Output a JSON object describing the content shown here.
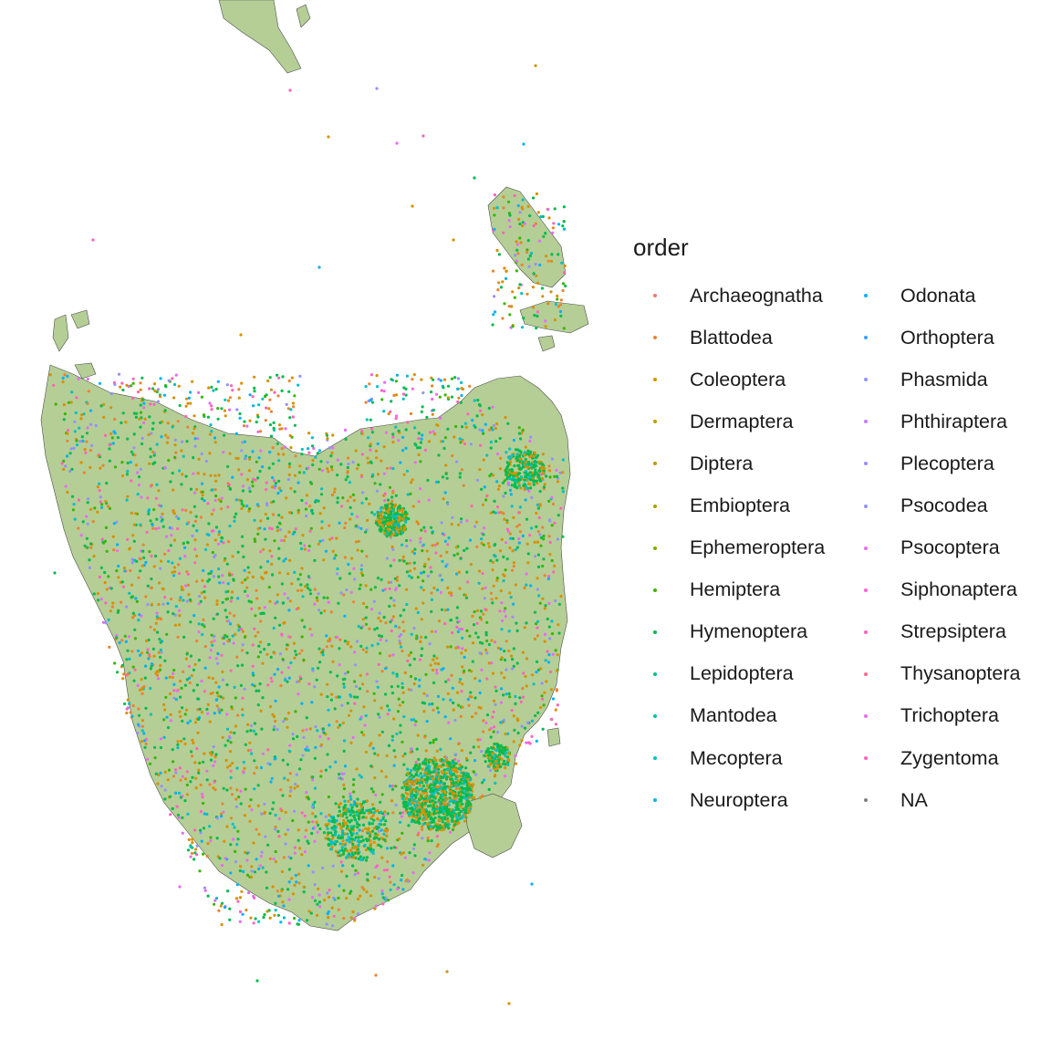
{
  "legend": {
    "title": "order",
    "items": [
      {
        "label": "Archaeognatha",
        "color": "#F8766D"
      },
      {
        "label": "Blattodea",
        "color": "#EA8331"
      },
      {
        "label": "Coleoptera",
        "color": "#D89000"
      },
      {
        "label": "Dermaptera",
        "color": "#C09B00"
      },
      {
        "label": "Diptera",
        "color": "#C09B00"
      },
      {
        "label": "Embioptera",
        "color": "#A3A500"
      },
      {
        "label": "Ephemeroptera",
        "color": "#7CAE00"
      },
      {
        "label": "Hemiptera",
        "color": "#39B600"
      },
      {
        "label": "Hymenoptera",
        "color": "#00BB4E"
      },
      {
        "label": "Lepidoptera",
        "color": "#00BF7D"
      },
      {
        "label": "Mantodea",
        "color": "#00C1A3"
      },
      {
        "label": "Mecoptera",
        "color": "#00BFC4"
      },
      {
        "label": "Neuroptera",
        "color": "#00BAE0"
      },
      {
        "label": "Odonata",
        "color": "#00B0F6"
      },
      {
        "label": "Orthoptera",
        "color": "#35A2FF"
      },
      {
        "label": "Phasmida",
        "color": "#9590FF"
      },
      {
        "label": "Phthiraptera",
        "color": "#C77CFF"
      },
      {
        "label": "Plecoptera",
        "color": "#9590FF"
      },
      {
        "label": "Psocodea",
        "color": "#9590FF"
      },
      {
        "label": "Psocoptera",
        "color": "#E76BF3"
      },
      {
        "label": "Siphonaptera",
        "color": "#FA62DB"
      },
      {
        "label": "Strepsiptera",
        "color": "#FF62BC"
      },
      {
        "label": "Thysanoptera",
        "color": "#FF6C91"
      },
      {
        "label": "Trichoptera",
        "color": "#E76BF3"
      },
      {
        "label": "Zygentoma",
        "color": "#FF62BC"
      },
      {
        "label": "NA",
        "color": "#7F7F7F"
      }
    ]
  },
  "map": {
    "land_color": "#B5CE96",
    "outline_color": "#4D4D4D"
  }
}
